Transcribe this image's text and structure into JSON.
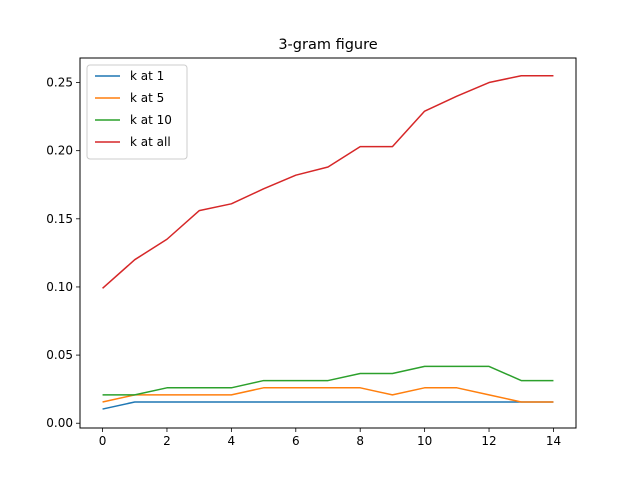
{
  "chart_data": {
    "type": "line",
    "title": "3-gram figure",
    "xlabel": "",
    "ylabel": "",
    "xlim": [
      -0.7,
      14.7
    ],
    "ylim": [
      -0.0035,
      0.268
    ],
    "xticks": [
      0,
      2,
      4,
      6,
      8,
      10,
      12,
      14
    ],
    "xtick_labels": [
      "0",
      "2",
      "4",
      "6",
      "8",
      "10",
      "12",
      "14"
    ],
    "yticks": [
      0.0,
      0.05,
      0.1,
      0.15,
      0.2,
      0.25
    ],
    "ytick_labels": [
      "0.00",
      "0.05",
      "0.10",
      "0.15",
      "0.20",
      "0.25"
    ],
    "grid": false,
    "legend_position": "top-left",
    "x": [
      0,
      1,
      2,
      3,
      4,
      5,
      6,
      7,
      8,
      9,
      10,
      11,
      12,
      13,
      14
    ],
    "series": [
      {
        "name": "k at 1",
        "color": "#1f77b4",
        "values": [
          0.0104,
          0.0156,
          0.0156,
          0.0156,
          0.0156,
          0.0156,
          0.0156,
          0.0156,
          0.0156,
          0.0156,
          0.0156,
          0.0156,
          0.0156,
          0.0156,
          0.0156
        ]
      },
      {
        "name": "k at 5",
        "color": "#ff7f0e",
        "values": [
          0.0156,
          0.0208,
          0.0208,
          0.0208,
          0.0208,
          0.026,
          0.026,
          0.026,
          0.026,
          0.0208,
          0.026,
          0.026,
          0.0208,
          0.0156,
          0.0156
        ]
      },
      {
        "name": "k at 10",
        "color": "#2ca02c",
        "values": [
          0.0208,
          0.0208,
          0.026,
          0.026,
          0.026,
          0.0313,
          0.0313,
          0.0313,
          0.0365,
          0.0365,
          0.0417,
          0.0417,
          0.0417,
          0.0313,
          0.0313
        ]
      },
      {
        "name": "k at all",
        "color": "#d62728",
        "values": [
          0.099,
          0.12,
          0.135,
          0.156,
          0.161,
          0.172,
          0.182,
          0.188,
          0.203,
          0.203,
          0.229,
          0.24,
          0.25,
          0.255,
          0.255
        ]
      }
    ]
  }
}
